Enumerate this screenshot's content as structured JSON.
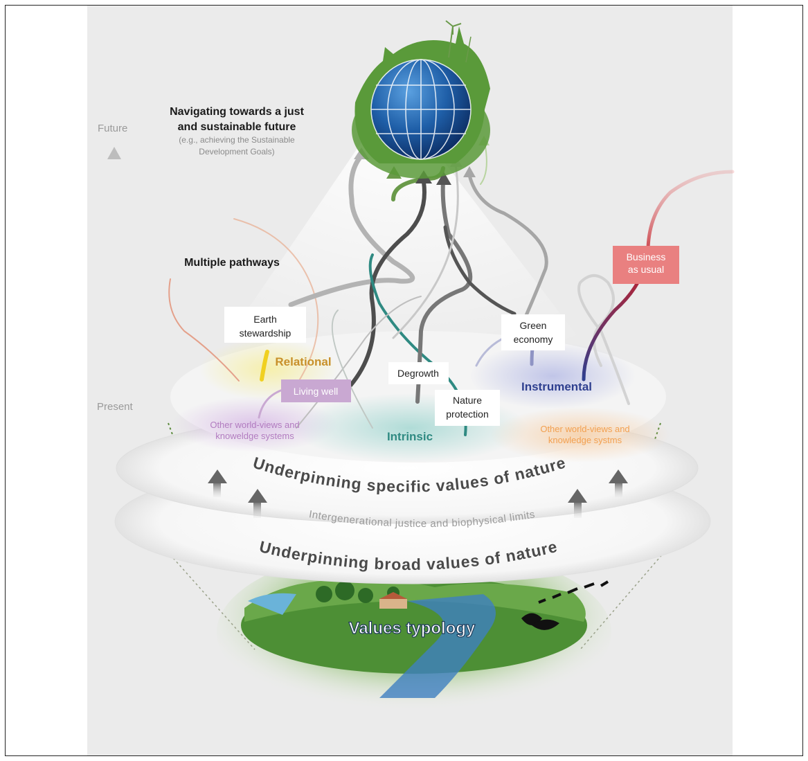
{
  "title": {
    "line1": "Navigating towards a just",
    "line2": "and sustainable future",
    "sub1": "(e.g., achieving the Sustainable",
    "sub2": "Development Goals)"
  },
  "timeline": {
    "top": "Future",
    "bottom": "Present"
  },
  "pathways_heading": "Multiple pathways",
  "pathways": {
    "earth_stewardship": [
      "Earth",
      "stewardship"
    ],
    "living_well": "Living well",
    "degrowth": "Degrowth",
    "nature_protection": [
      "Nature",
      "protection"
    ],
    "green_economy": [
      "Green",
      "economy"
    ],
    "business_as_usual": [
      "Business",
      "as usual"
    ]
  },
  "values": {
    "relational": "Relational",
    "intrinsic": "Intrinsic",
    "instrumental": "Instrumental",
    "other_left": [
      "Other world-views and",
      "knoweldge systems"
    ],
    "other_right": [
      "Other world-views and",
      "knowledge systms"
    ]
  },
  "layers": {
    "specific": "Underpinning specific values of nature",
    "justice": "Intergenerational justice and biophysical limits",
    "broad": "Underpinning broad values of nature"
  },
  "base_label": "Values typology",
  "colors": {
    "relational": "#c8902a",
    "intrinsic": "#2f8a82",
    "instrumental": "#2e3f8f",
    "living_well_box": "#c9a8d2",
    "business_box": "#e98080",
    "globe": "#1f5fa8",
    "vegetation": "#5a9a3a"
  }
}
